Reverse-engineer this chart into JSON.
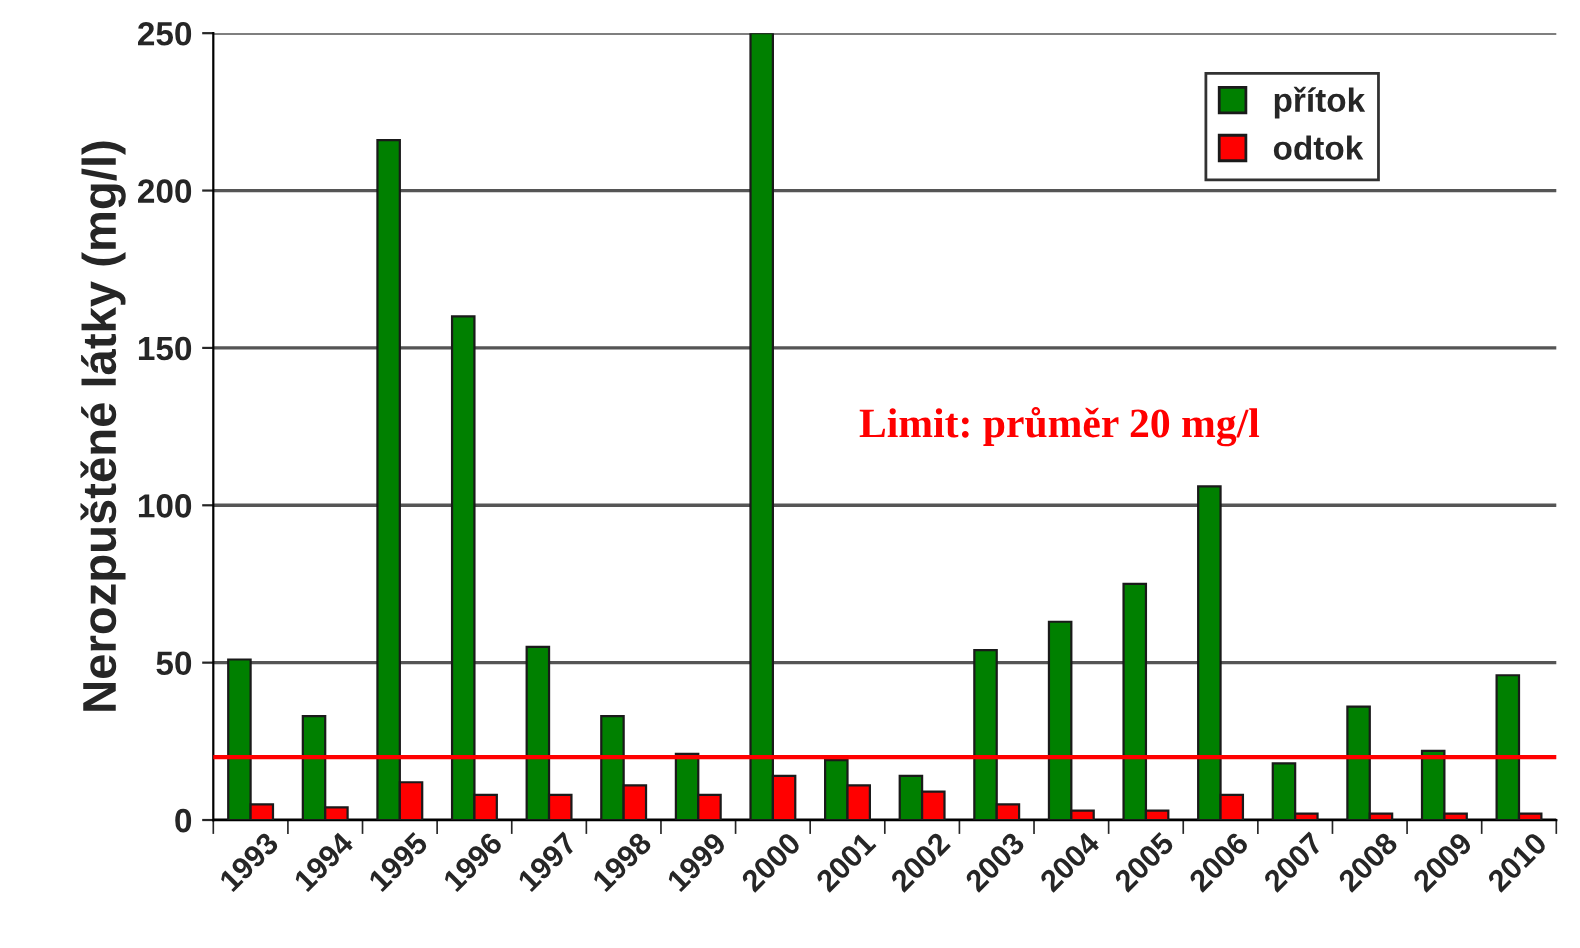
{
  "chart_data": {
    "type": "bar",
    "ylabel": "Nerozpuštěné látky (mg/l)",
    "categories": [
      "1993",
      "1994",
      "1995",
      "1996",
      "1997",
      "1998",
      "1999",
      "2000",
      "2001",
      "2002",
      "2003",
      "2004",
      "2005",
      "2006",
      "2007",
      "2008",
      "2009",
      "2010"
    ],
    "series": [
      {
        "name": "přítok",
        "color": "#008000",
        "values": [
          51,
          33,
          216,
          160,
          55,
          33,
          21,
          250,
          19,
          14,
          54,
          63,
          75,
          106,
          18,
          36,
          22,
          46
        ]
      },
      {
        "name": "odtok",
        "color": "#ff0000",
        "values": [
          5,
          4,
          12,
          8,
          8,
          11,
          8,
          14,
          11,
          9,
          5,
          3,
          3,
          8,
          2,
          2,
          2,
          2
        ]
      }
    ],
    "ylim": [
      0,
      250
    ],
    "yticks": [
      0,
      50,
      100,
      150,
      200,
      250
    ],
    "grid": "y",
    "legend": "top right",
    "ref_lines": [
      {
        "axis": "y",
        "value": 20,
        "label": "Limit: průměr 20 mg/l",
        "color": "#ff0000"
      }
    ]
  }
}
